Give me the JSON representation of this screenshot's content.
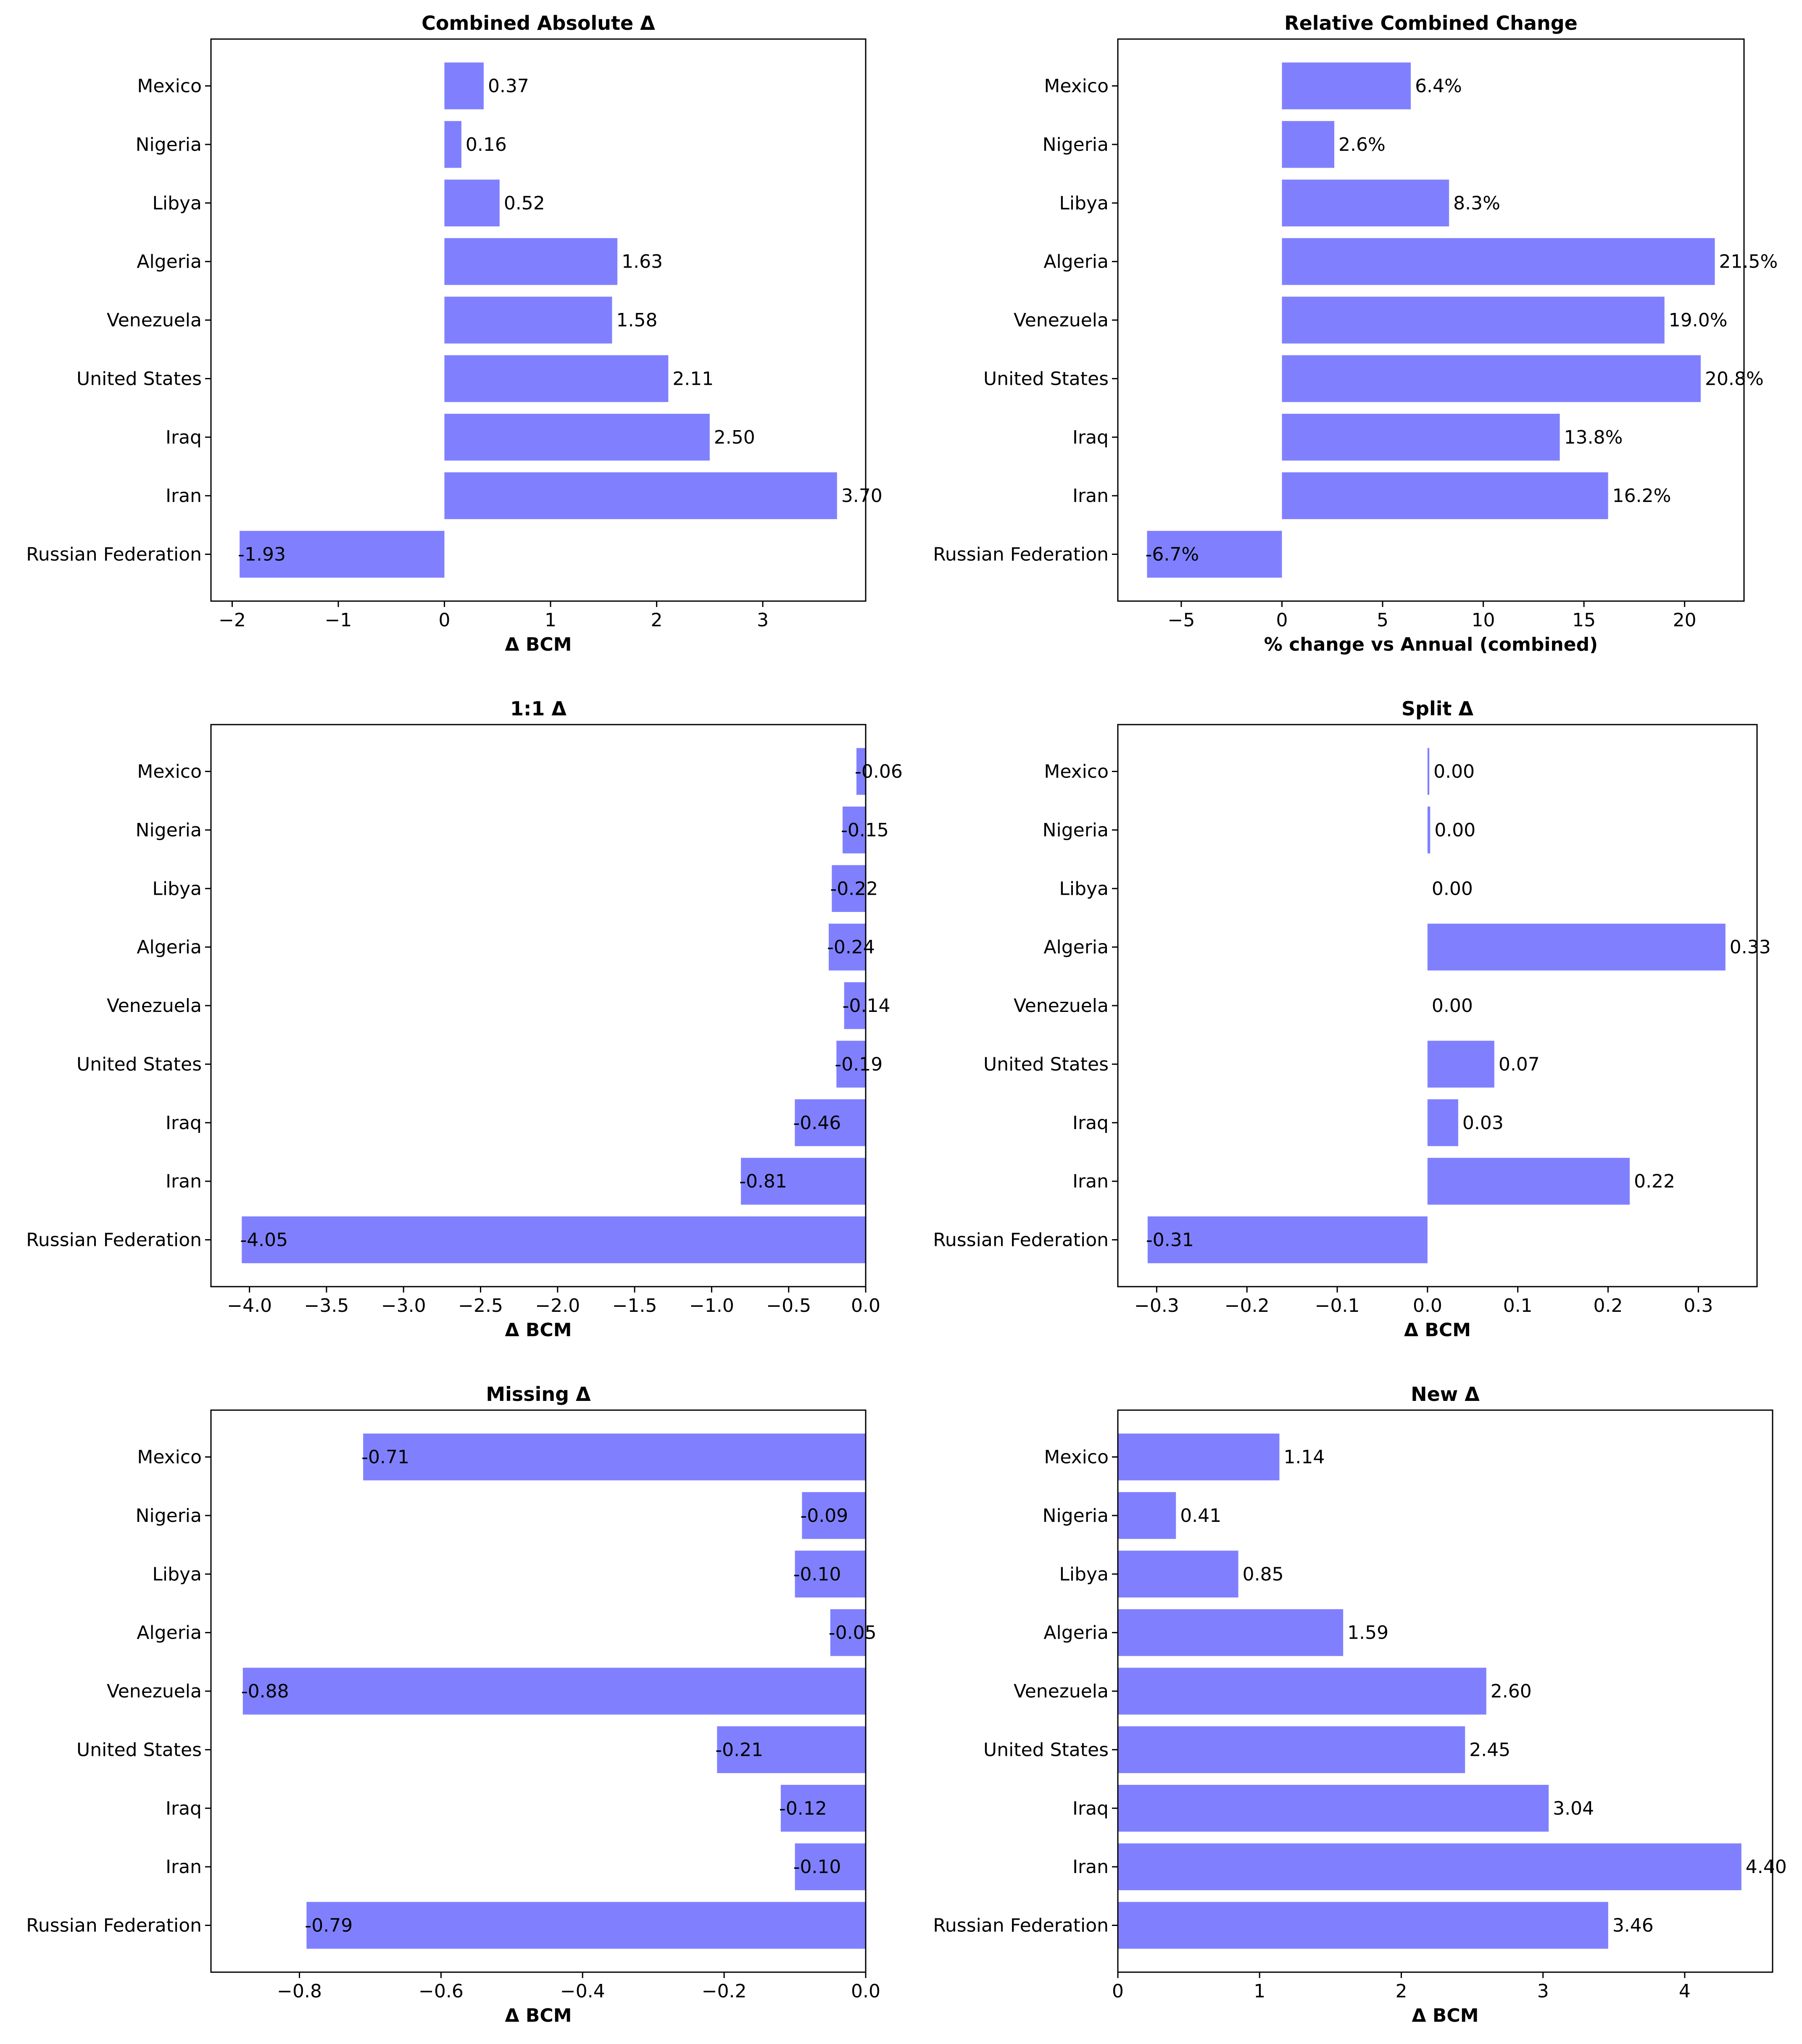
{
  "colors": {
    "bar": "#8080ff",
    "axis": "#000000",
    "background": "#ffffff"
  },
  "chart_data": [
    {
      "type": "bar",
      "orientation": "horizontal",
      "title": "Combined Absolute Δ",
      "xlabel": "Δ BCM",
      "categories": [
        "Mexico",
        "Nigeria",
        "Libya",
        "Algeria",
        "Venezuela",
        "United States",
        "Iraq",
        "Iran",
        "Russian Federation"
      ],
      "values": [
        0.37,
        0.16,
        0.52,
        1.63,
        1.58,
        2.11,
        2.5,
        3.7,
        -1.93
      ],
      "labels": [
        "0.37",
        "0.16",
        "0.52",
        "1.63",
        "1.58",
        "2.11",
        "2.50",
        "3.70",
        "-1.93"
      ],
      "xlim": [
        -2.2,
        3.97
      ],
      "xticks": [
        -2,
        -1,
        0,
        1,
        2,
        3
      ],
      "xtick_labels": [
        "−2",
        "−1",
        "0",
        "1",
        "2",
        "3"
      ],
      "grid": false
    },
    {
      "type": "bar",
      "orientation": "horizontal",
      "title": "Relative Combined Change",
      "xlabel": "% change vs Annual (combined)",
      "categories": [
        "Mexico",
        "Nigeria",
        "Libya",
        "Algeria",
        "Venezuela",
        "United States",
        "Iraq",
        "Iran",
        "Russian Federation"
      ],
      "values": [
        6.4,
        2.6,
        8.3,
        21.5,
        19.0,
        20.8,
        13.8,
        16.2,
        -6.7
      ],
      "labels": [
        "6.4%",
        "2.6%",
        "8.3%",
        "21.5%",
        "19.0%",
        "20.8%",
        "13.8%",
        "16.2%",
        "-6.7%"
      ],
      "xlim": [
        -8.15,
        22.95
      ],
      "xticks": [
        -5,
        0,
        5,
        10,
        15,
        20
      ],
      "xtick_labels": [
        "−5",
        "0",
        "5",
        "10",
        "15",
        "20"
      ],
      "grid": false
    },
    {
      "type": "bar",
      "orientation": "horizontal",
      "title": "1:1 Δ",
      "xlabel": "Δ BCM",
      "categories": [
        "Mexico",
        "Nigeria",
        "Libya",
        "Algeria",
        "Venezuela",
        "United States",
        "Iraq",
        "Iran",
        "Russian Federation"
      ],
      "values": [
        -0.06,
        -0.15,
        -0.22,
        -0.24,
        -0.14,
        -0.19,
        -0.46,
        -0.81,
        -4.05
      ],
      "labels": [
        "-0.06",
        "-0.15",
        "-0.22",
        "-0.24",
        "-0.14",
        "-0.19",
        "-0.46",
        "-0.81",
        "-4.05"
      ],
      "xlim": [
        -4.25,
        0.0
      ],
      "xticks": [
        -4.0,
        -3.5,
        -3.0,
        -2.5,
        -2.0,
        -1.5,
        -1.0,
        -0.5,
        0.0
      ],
      "xtick_labels": [
        "−4.0",
        "−3.5",
        "−3.0",
        "−2.5",
        "−2.0",
        "−1.5",
        "−1.0",
        "−0.5",
        "0.0"
      ],
      "grid": false
    },
    {
      "type": "bar",
      "orientation": "horizontal",
      "title": "Split Δ",
      "xlabel": "Δ BCM",
      "categories": [
        "Mexico",
        "Nigeria",
        "Libya",
        "Algeria",
        "Venezuela",
        "United States",
        "Iraq",
        "Iran",
        "Russian Federation"
      ],
      "values": [
        0.002,
        0.003,
        0.0,
        0.33,
        0.0,
        0.074,
        0.034,
        0.224,
        -0.31
      ],
      "labels": [
        "0.00",
        "0.00",
        "0.00",
        "0.33",
        "0.00",
        "0.07",
        "0.03",
        "0.22",
        "-0.31"
      ],
      "xlim": [
        -0.343,
        0.365
      ],
      "xticks": [
        -0.3,
        -0.2,
        -0.1,
        0.0,
        0.1,
        0.2,
        0.3
      ],
      "xtick_labels": [
        "−0.3",
        "−0.2",
        "−0.1",
        "0.0",
        "0.1",
        "0.2",
        "0.3"
      ],
      "grid": false
    },
    {
      "type": "bar",
      "orientation": "horizontal",
      "title": "Missing Δ",
      "xlabel": "Δ BCM",
      "categories": [
        "Mexico",
        "Nigeria",
        "Libya",
        "Algeria",
        "Venezuela",
        "United States",
        "Iraq",
        "Iran",
        "Russian Federation"
      ],
      "values": [
        -0.71,
        -0.09,
        -0.1,
        -0.05,
        -0.88,
        -0.21,
        -0.12,
        -0.1,
        -0.79
      ],
      "labels": [
        "-0.71",
        "-0.09",
        "-0.10",
        "-0.05",
        "-0.88",
        "-0.21",
        "-0.12",
        "-0.10",
        "-0.79"
      ],
      "xlim": [
        -0.925,
        0.0
      ],
      "xticks": [
        -0.8,
        -0.6,
        -0.4,
        -0.2,
        0.0
      ],
      "xtick_labels": [
        "−0.8",
        "−0.6",
        "−0.4",
        "−0.2",
        "0.0"
      ],
      "grid": false
    },
    {
      "type": "bar",
      "orientation": "horizontal",
      "title": "New Δ",
      "xlabel": "Δ BCM",
      "categories": [
        "Mexico",
        "Nigeria",
        "Libya",
        "Algeria",
        "Venezuela",
        "United States",
        "Iraq",
        "Iran",
        "Russian Federation"
      ],
      "values": [
        1.14,
        0.41,
        0.85,
        1.59,
        2.6,
        2.45,
        3.04,
        4.4,
        3.46
      ],
      "labels": [
        "1.14",
        "0.41",
        "0.85",
        "1.59",
        "2.60",
        "2.45",
        "3.04",
        "4.40",
        "3.46"
      ],
      "xlim": [
        0,
        4.62
      ],
      "xticks": [
        0,
        1,
        2,
        3,
        4
      ],
      "xtick_labels": [
        "0",
        "1",
        "2",
        "3",
        "4"
      ],
      "grid": false
    }
  ]
}
